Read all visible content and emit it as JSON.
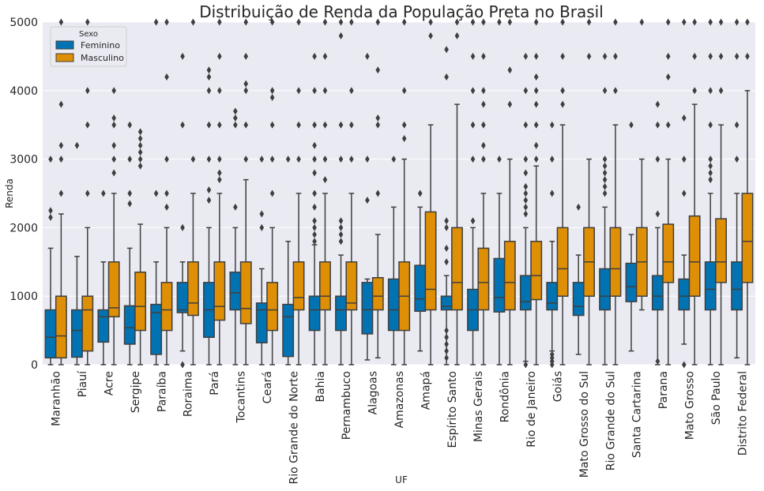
{
  "chart_data": {
    "type": "boxplot",
    "title": "Distribuição de Renda da População Preta no Brasil",
    "xlabel": "UF",
    "ylabel": "Renda",
    "ylim": [
      0,
      5000
    ],
    "yticks": [
      0,
      1000,
      2000,
      3000,
      4000,
      5000
    ],
    "grid": true,
    "legend": {
      "title": "Sexo",
      "placement": "top-left"
    },
    "categories": [
      "Maranhão",
      "Piauí",
      "Acre",
      "Sergipe",
      "Paraíba",
      "Roraima",
      "Pará",
      "Tocantins",
      "Ceará",
      "Rio Grande do Norte",
      "Bahia",
      "Pernambuco",
      "Alagoas",
      "Amazonas",
      "Amapá",
      "Espírito Santo",
      "Minas Gerais",
      "Rondônia",
      "Rio de Janeiro",
      "Goiás",
      "Mato Grosso do Sul",
      "Rio Grande do Sul",
      "Santa Cartarina",
      "Parana",
      "Mato Grosso",
      "São Paulo",
      "Distrito Federal"
    ],
    "series": [
      {
        "name": "Feminino",
        "color": "#0173b2",
        "boxes": [
          {
            "whislo": 0,
            "q1": 100,
            "med": 400,
            "q3": 800,
            "whishi": 1700,
            "fliers": [
              2150,
              2250,
              3000
            ]
          },
          {
            "whislo": 0,
            "q1": 110,
            "med": 500,
            "q3": 800,
            "whishi": 1580,
            "fliers": [
              3200
            ]
          },
          {
            "whislo": 0,
            "q1": 330,
            "med": 700,
            "q3": 800,
            "whishi": 1500,
            "fliers": [
              2500
            ]
          },
          {
            "whislo": 0,
            "q1": 300,
            "med": 540,
            "q3": 860,
            "whishi": 1700,
            "fliers": [
              2350,
              2500,
              3000,
              3500
            ]
          },
          {
            "whislo": 0,
            "q1": 150,
            "med": 760,
            "q3": 880,
            "whishi": 1500,
            "fliers": [
              2500,
              5000
            ]
          },
          {
            "whislo": 200,
            "q1": 760,
            "med": 800,
            "q3": 1200,
            "whishi": 1500,
            "fliers": [
              0,
              2000,
              3500,
              4500
            ]
          },
          {
            "whislo": 0,
            "q1": 400,
            "med": 800,
            "q3": 1200,
            "whishi": 2000,
            "fliers": [
              2400,
              2550,
              3000,
              3500,
              4000,
              4200,
              4300
            ]
          },
          {
            "whislo": 0,
            "q1": 800,
            "med": 1050,
            "q3": 1350,
            "whishi": 2000,
            "fliers": [
              2300,
              3500,
              3600,
              3700
            ]
          },
          {
            "whislo": 0,
            "q1": 320,
            "med": 800,
            "q3": 900,
            "whishi": 1400,
            "fliers": [
              2000,
              2200,
              3000
            ]
          },
          {
            "whislo": 0,
            "q1": 120,
            "med": 700,
            "q3": 880,
            "whishi": 1800,
            "fliers": [
              3000
            ]
          },
          {
            "whislo": 0,
            "q1": 500,
            "med": 800,
            "q3": 1000,
            "whishi": 1750,
            "fliers": [
              1800,
              1900,
              2000,
              2100,
              2300,
              2500,
              2800,
              3000,
              3200,
              3500,
              4000,
              4500
            ]
          },
          {
            "whislo": 0,
            "q1": 500,
            "med": 800,
            "q3": 1000,
            "whishi": 1600,
            "fliers": [
              1800,
              1900,
              2000,
              2100,
              3000,
              3500,
              4800,
              5000
            ]
          },
          {
            "whislo": 70,
            "q1": 450,
            "med": 800,
            "q3": 1200,
            "whishi": 1250,
            "fliers": [
              2400,
              3000,
              4500
            ]
          },
          {
            "whislo": 0,
            "q1": 500,
            "med": 800,
            "q3": 1250,
            "whishi": 2300,
            "fliers": [
              3000
            ]
          },
          {
            "whislo": 200,
            "q1": 780,
            "med": 960,
            "q3": 1450,
            "whishi": 2300,
            "fliers": [
              2500
            ]
          },
          {
            "whislo": 0,
            "q1": 800,
            "med": 850,
            "q3": 1000,
            "whishi": 1300,
            "fliers": [
              100,
              200,
              300,
              400,
              500,
              1500,
              1700,
              2000,
              2100,
              4200,
              4600
            ]
          },
          {
            "whislo": 0,
            "q1": 500,
            "med": 800,
            "q3": 1100,
            "whishi": 2000,
            "fliers": [
              2100,
              3000,
              3500,
              4000,
              4500,
              5000
            ]
          },
          {
            "whislo": 0,
            "q1": 770,
            "med": 980,
            "q3": 1550,
            "whishi": 2500,
            "fliers": [
              3000,
              5000
            ]
          },
          {
            "whislo": 50,
            "q1": 800,
            "med": 920,
            "q3": 1300,
            "whishi": 2000,
            "fliers": [
              0,
              2200,
              2300,
              2400,
              2500,
              2600,
              2800,
              3000,
              3500,
              4000,
              4500
            ]
          },
          {
            "whislo": 200,
            "q1": 800,
            "med": 900,
            "q3": 1200,
            "whishi": 1800,
            "fliers": [
              0,
              50,
              100,
              150,
              2500,
              3000,
              3500
            ]
          },
          {
            "whislo": 150,
            "q1": 720,
            "med": 850,
            "q3": 1200,
            "whishi": 1600,
            "fliers": [
              2300
            ]
          },
          {
            "whislo": 0,
            "q1": 800,
            "med": 1000,
            "q3": 1400,
            "whishi": 2300,
            "fliers": [
              2500,
              2600,
              2700,
              2800,
              2900,
              3000,
              4000,
              4500
            ]
          },
          {
            "whislo": 200,
            "q1": 920,
            "med": 1140,
            "q3": 1480,
            "whishi": 1900,
            "fliers": [
              3500
            ]
          },
          {
            "whislo": 0,
            "q1": 800,
            "med": 1000,
            "q3": 1300,
            "whishi": 2000,
            "fliers": [
              50,
              2200,
              3000,
              3500,
              3800
            ]
          },
          {
            "whislo": 300,
            "q1": 800,
            "med": 1000,
            "q3": 1250,
            "whishi": 1600,
            "fliers": [
              0,
              2500,
              3000,
              3600,
              5000
            ]
          },
          {
            "whislo": 0,
            "q1": 800,
            "med": 1100,
            "q3": 1500,
            "whishi": 2500,
            "fliers": [
              2700,
              2800,
              2900,
              3000,
              3500,
              4000,
              4500,
              5000
            ]
          },
          {
            "whislo": 100,
            "q1": 800,
            "med": 1100,
            "q3": 1500,
            "whishi": 2500,
            "fliers": [
              3000,
              3500,
              4500,
              5000
            ]
          }
        ]
      },
      {
        "name": "Masculino",
        "color": "#de8f05",
        "boxes": [
          {
            "whislo": 0,
            "q1": 100,
            "med": 420,
            "q3": 1000,
            "whishi": 2200,
            "fliers": [
              2500,
              3000,
              3200,
              3800,
              5000
            ]
          },
          {
            "whislo": 0,
            "q1": 200,
            "med": 800,
            "q3": 1000,
            "whishi": 2000,
            "fliers": [
              2500,
              3500,
              4000,
              5000
            ]
          },
          {
            "whislo": 0,
            "q1": 700,
            "med": 830,
            "q3": 1500,
            "whishi": 2500,
            "fliers": [
              2800,
              3000,
              3200,
              3500,
              3600,
              4000
            ]
          },
          {
            "whislo": 0,
            "q1": 500,
            "med": 850,
            "q3": 1350,
            "whishi": 2050,
            "fliers": [
              2900,
              3000,
              3100,
              3200,
              3300,
              3400
            ]
          },
          {
            "whislo": 0,
            "q1": 500,
            "med": 800,
            "q3": 1200,
            "whishi": 2000,
            "fliers": [
              2300,
              2500,
              3000,
              4200,
              5000
            ]
          },
          {
            "whislo": 0,
            "q1": 720,
            "med": 900,
            "q3": 1500,
            "whishi": 2500,
            "fliers": [
              3000,
              5000
            ]
          },
          {
            "whislo": 0,
            "q1": 650,
            "med": 850,
            "q3": 1500,
            "whishi": 2500,
            "fliers": [
              2700,
              2800,
              3000,
              3500,
              4000,
              4500,
              5000
            ]
          },
          {
            "whislo": 0,
            "q1": 600,
            "med": 820,
            "q3": 1500,
            "whishi": 2700,
            "fliers": [
              3000,
              3500,
              4000,
              4100,
              4500,
              5000
            ]
          },
          {
            "whislo": 0,
            "q1": 500,
            "med": 800,
            "q3": 1200,
            "whishi": 2000,
            "fliers": [
              2500,
              3000,
              3500,
              3900,
              4000,
              5000
            ]
          },
          {
            "whislo": 0,
            "q1": 800,
            "med": 980,
            "q3": 1500,
            "whishi": 2500,
            "fliers": [
              3000,
              3500,
              4000,
              5000
            ]
          },
          {
            "whislo": 0,
            "q1": 800,
            "med": 1000,
            "q3": 1500,
            "whishi": 2500,
            "fliers": [
              2700,
              3000,
              3500,
              4000,
              4500,
              5000
            ]
          },
          {
            "whislo": 0,
            "q1": 800,
            "med": 900,
            "q3": 1500,
            "whishi": 2500,
            "fliers": [
              3000,
              3500,
              4000,
              5000
            ]
          },
          {
            "whislo": 100,
            "q1": 800,
            "med": 1000,
            "q3": 1270,
            "whishi": 1900,
            "fliers": [
              2500,
              3500,
              3600,
              4300,
              5000
            ]
          },
          {
            "whislo": 0,
            "q1": 500,
            "med": 1000,
            "q3": 1500,
            "whishi": 3000,
            "fliers": [
              3300,
              3500,
              4000,
              5000
            ]
          },
          {
            "whislo": 0,
            "q1": 800,
            "med": 1100,
            "q3": 2230,
            "whishi": 3500,
            "fliers": [
              4800,
              5000
            ]
          },
          {
            "whislo": 0,
            "q1": 800,
            "med": 1200,
            "q3": 2000,
            "whishi": 3800,
            "fliers": [
              4800,
              5000
            ]
          },
          {
            "whislo": 0,
            "q1": 800,
            "med": 1200,
            "q3": 1700,
            "whishi": 2500,
            "fliers": [
              3000,
              3200,
              3500,
              3800,
              4000,
              4500,
              5000
            ]
          },
          {
            "whislo": 0,
            "q1": 800,
            "med": 1200,
            "q3": 1800,
            "whishi": 3000,
            "fliers": [
              3800,
              4300,
              5000
            ]
          },
          {
            "whislo": 0,
            "q1": 950,
            "med": 1300,
            "q3": 1800,
            "whishi": 2900,
            "fliers": [
              3000,
              3200,
              3500,
              3800,
              4000,
              4200,
              4500,
              5000
            ]
          },
          {
            "whislo": 0,
            "q1": 1000,
            "med": 1400,
            "q3": 2000,
            "whishi": 3500,
            "fliers": [
              3800,
              4000,
              4500,
              5000
            ]
          },
          {
            "whislo": 0,
            "q1": 1000,
            "med": 1500,
            "q3": 2000,
            "whishi": 3000,
            "fliers": [
              4500,
              5000
            ]
          },
          {
            "whislo": 0,
            "q1": 1000,
            "med": 1400,
            "q3": 2000,
            "whishi": 3500,
            "fliers": [
              4000,
              4500,
              5000
            ]
          },
          {
            "whislo": 800,
            "q1": 1000,
            "med": 1500,
            "q3": 2000,
            "whishi": 3000,
            "fliers": [
              5000
            ]
          },
          {
            "whislo": 0,
            "q1": 1200,
            "med": 1500,
            "q3": 2050,
            "whishi": 3000,
            "fliers": [
              3500,
              4200,
              4500,
              5000
            ]
          },
          {
            "whislo": 0,
            "q1": 1000,
            "med": 1500,
            "q3": 2170,
            "whishi": 3800,
            "fliers": [
              4000,
              4500,
              5000
            ]
          },
          {
            "whislo": 0,
            "q1": 1200,
            "med": 1500,
            "q3": 2130,
            "whishi": 3500,
            "fliers": [
              4000,
              4500,
              5000
            ]
          },
          {
            "whislo": 0,
            "q1": 1200,
            "med": 1800,
            "q3": 2500,
            "whishi": 4000,
            "fliers": [
              4500,
              5000
            ]
          }
        ]
      }
    ]
  }
}
